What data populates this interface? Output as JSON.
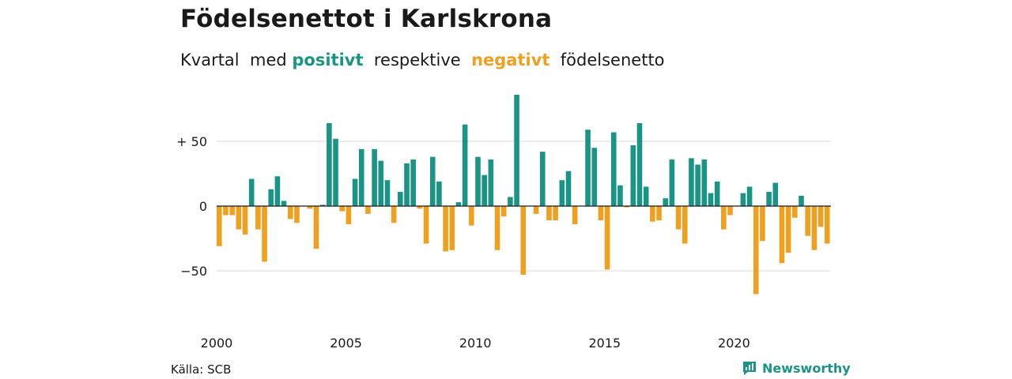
{
  "title": "Födelsenettot i Karlskrona",
  "subtitle": {
    "part1": "Kvartal  med ",
    "positive_word": "positivt",
    "part2": "  respektive  ",
    "negative_word": "negativt",
    "part3": "  födelsenetto"
  },
  "source": "Källa: SCB",
  "brand": {
    "name": "Newsworthy",
    "icon": "newsworthy-logo-icon"
  },
  "colors": {
    "positive": "#1a9484",
    "negative": "#f0a01f",
    "grid": "#d9d9d9",
    "zero_line": "#1a1a1a"
  },
  "chart_data": {
    "type": "bar",
    "x_start": "2000 Q1",
    "x_ticks": [
      "2000",
      "2005",
      "2010",
      "2015",
      "2020"
    ],
    "y_ticks": [
      {
        "value": 50,
        "label": "+ 50"
      },
      {
        "value": 0,
        "label": "0"
      },
      {
        "value": -50,
        "label": "−50"
      }
    ],
    "ylim": [
      -80,
      90
    ],
    "grid": true,
    "series": [
      {
        "values": [
          -31,
          -7,
          -7,
          -18,
          -22,
          21,
          -18,
          -43,
          13,
          23,
          4,
          -10,
          -13,
          0,
          -2,
          -33,
          1,
          64,
          52,
          -4,
          -14,
          21,
          44,
          -6,
          44,
          35,
          20,
          -13,
          11,
          33,
          36,
          -2,
          -29,
          38,
          19,
          -35,
          -34,
          3,
          63,
          -15,
          38,
          24,
          36,
          -34,
          -8,
          7,
          86,
          -53,
          0,
          -6,
          42,
          -11,
          -11,
          20,
          27,
          -14,
          0,
          59,
          45,
          -11,
          -49,
          57,
          16,
          -1,
          47,
          64,
          15,
          -12,
          -11,
          6,
          36,
          -18,
          -29,
          37,
          32,
          36,
          10,
          19,
          -18,
          -7,
          0,
          10,
          15,
          -68,
          -27,
          11,
          18,
          -44,
          -36,
          -9,
          8,
          -23,
          -34,
          -16,
          -29
        ]
      }
    ]
  }
}
